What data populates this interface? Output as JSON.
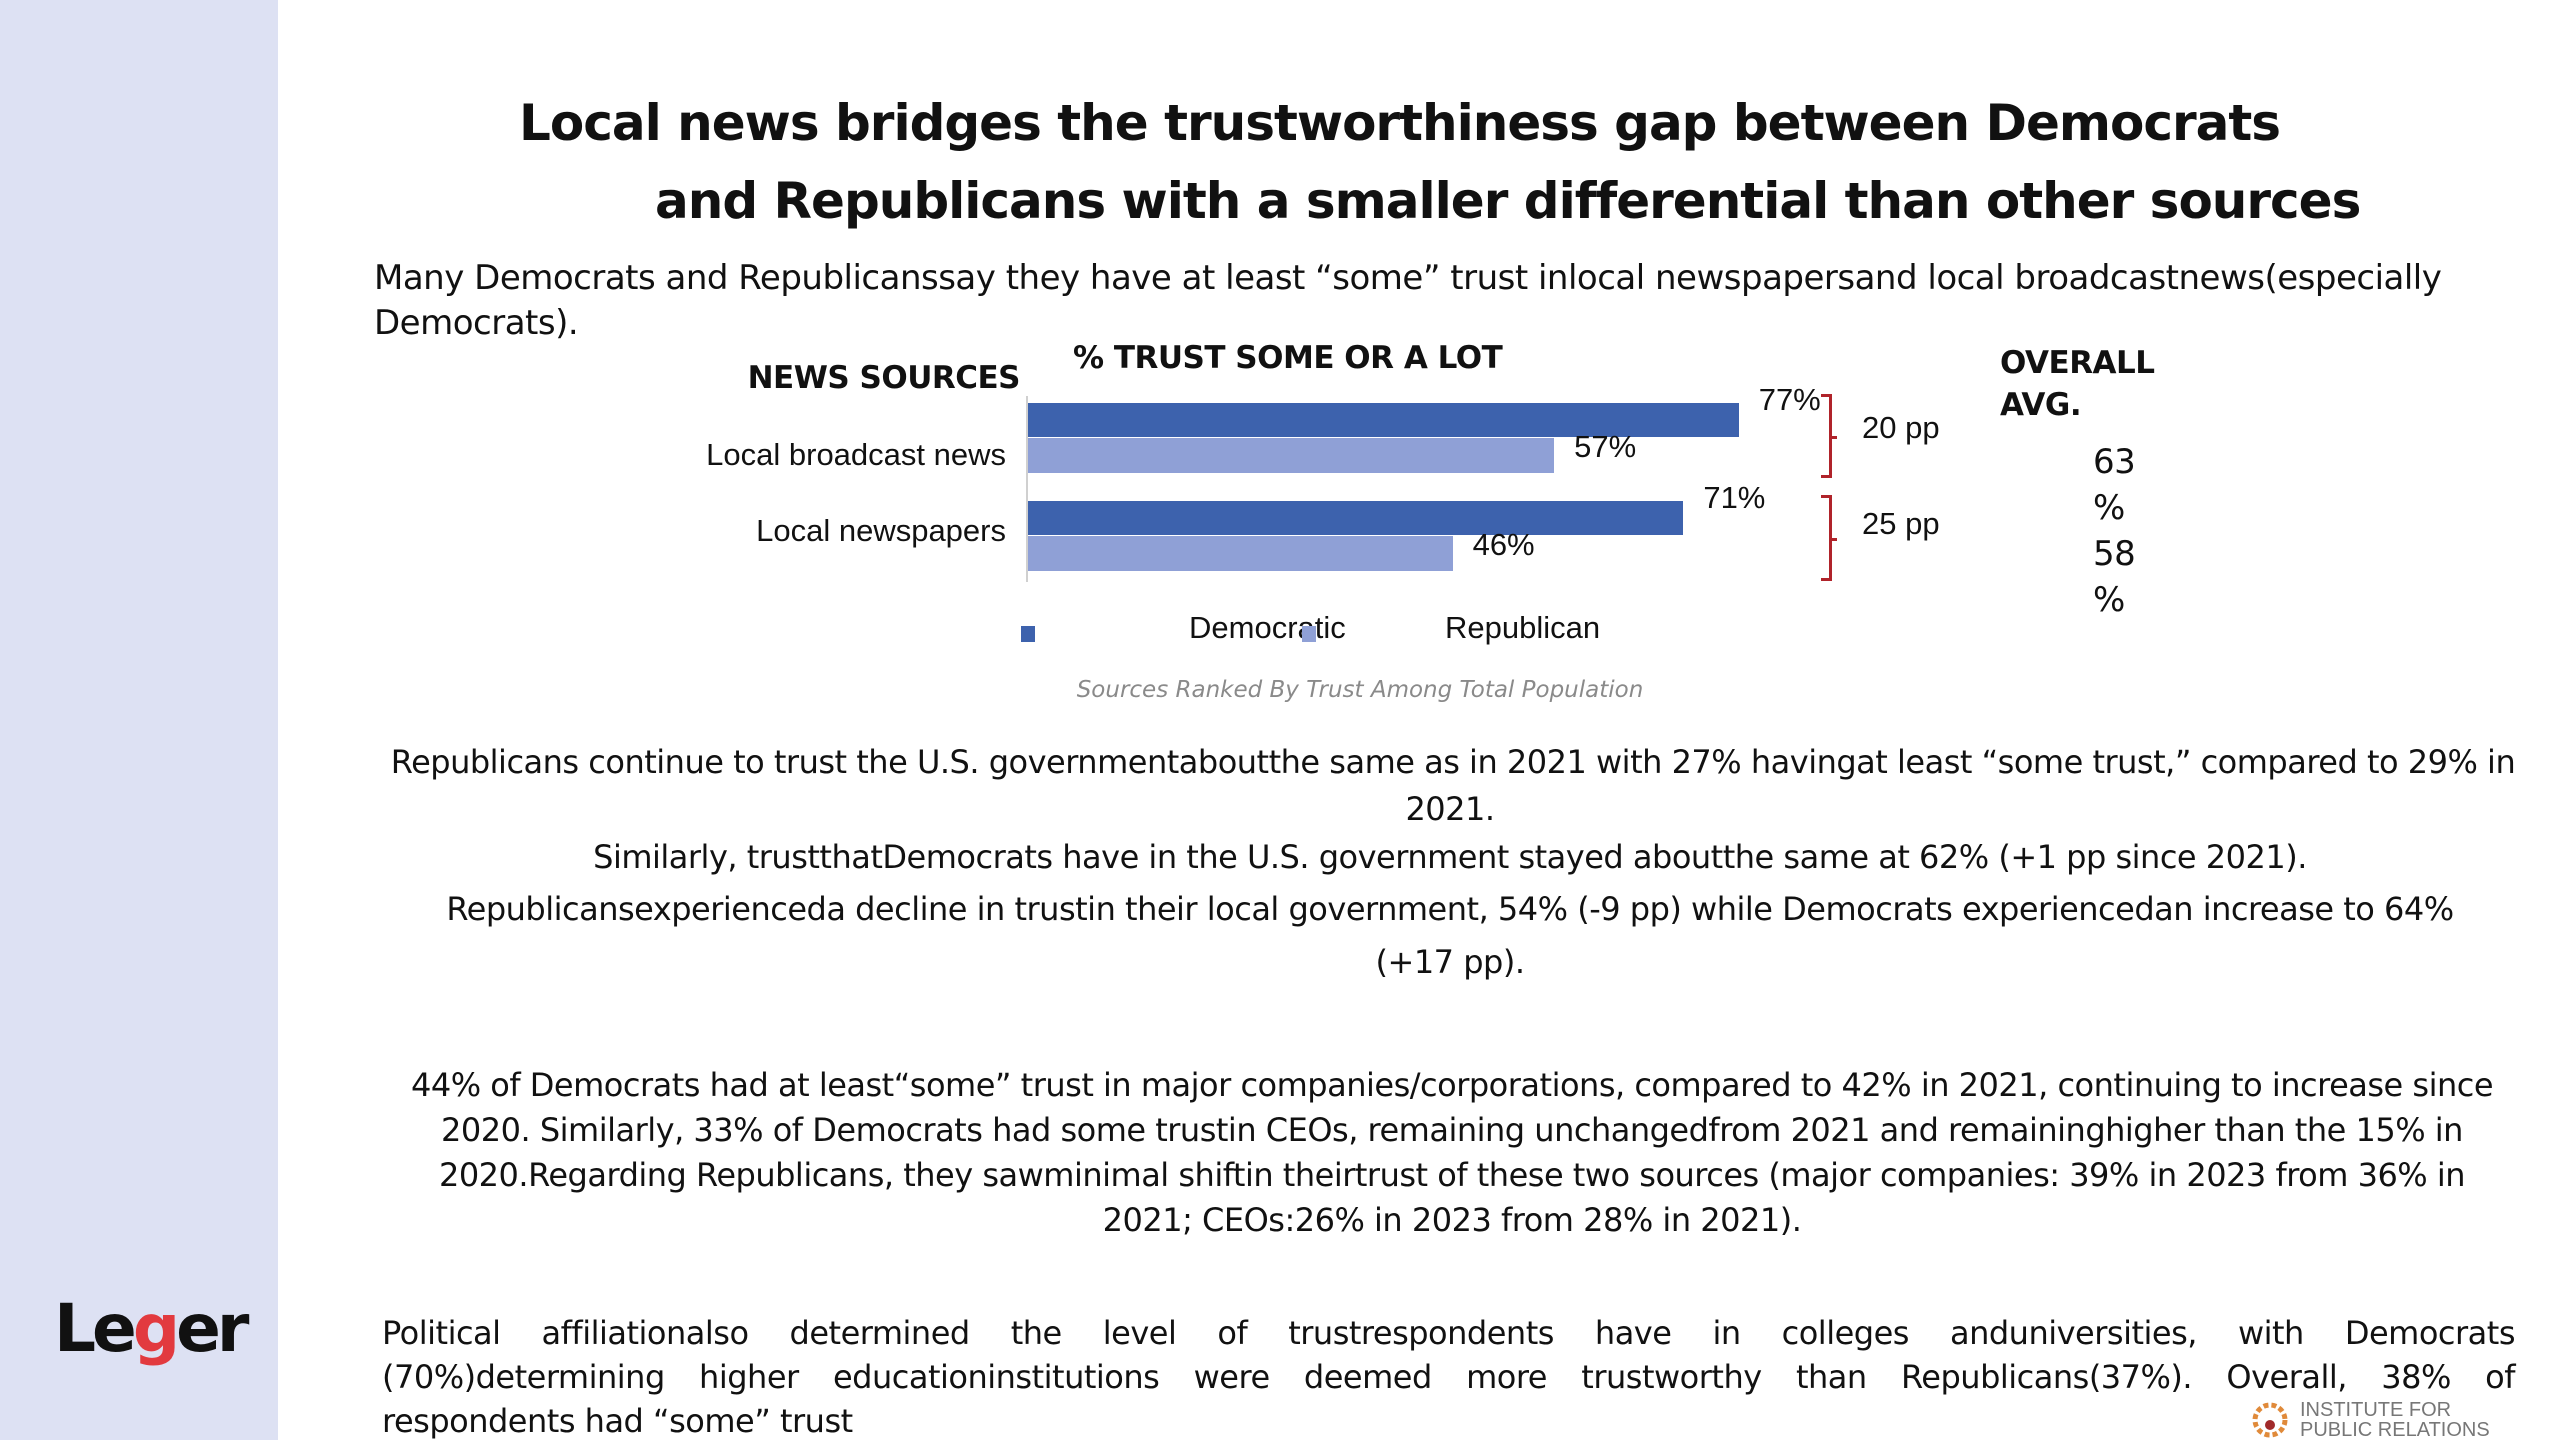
{
  "title": {
    "line1": "Local news bridges the trustworthiness gap between Democrats",
    "line2": "and Republicans with a smaller differential than other sources"
  },
  "subtitle": {
    "line1": "Many Democrats and Republicanssay they have at least “some” trust inlocal newspapersand local broadcastnews(especially",
    "line2": "Democrats)."
  },
  "chart_data": {
    "type": "bar",
    "orientation": "horizontal",
    "category_header": "NEWS SOURCES",
    "title": "% TRUST SOME OR A LOT",
    "categories": [
      "Local broadcast news",
      "Local newspapers"
    ],
    "series": [
      {
        "name": "Democratic",
        "color": "#3d62ad",
        "values": [
          77,
          71
        ],
        "labels": [
          "77%",
          "71%"
        ]
      },
      {
        "name": "Republican",
        "color": "#8fa0d6",
        "values": [
          57,
          46
        ],
        "labels": [
          "57%",
          "46%"
        ]
      }
    ],
    "gaps": [
      "20 pp",
      "25 pp"
    ],
    "overall_header": "OVERALL AVG.",
    "overall_avg": [
      "63 %",
      "58 %"
    ],
    "overall_avg_lines": [
      [
        "63",
        "%"
      ],
      [
        "58",
        "%"
      ]
    ],
    "legend_position": "bottom",
    "footnote": "Sources Ranked By Trust Among Total Population",
    "xlim": [
      0,
      100
    ],
    "grid": false
  },
  "para1": [
    "Republicans continue to trust the U.S. governmentaboutthe same as in 2021 with 27% havingat least “some trust,” compared to 29% in",
    "2021.",
    "Similarly, trustthatDemocrats have in the U.S. government stayed aboutthe same at 62% (+1 pp since 2021).",
    "Republicansexperienceda decline in trustin their local government, 54% (-9 pp) while Democrats experiencedan increase to 64%",
    "(+17 pp)."
  ],
  "para2": [
    "44% of Democrats had at least“some” trust in major companies/corporations, compared to 42% in 2021, continuing to increase since",
    "2020. Similarly, 33% of Democrats had some trustin CEOs, remaining unchangedfrom 2021 and remaininghigher than the 15% in",
    "2020.Regarding Republicans, they sawminimal shiftin theirtrust of these two sources (major companies: 39% in 2023 from 36% in",
    "2021; CEOs:26% in 2023 from 28% in 2021)."
  ],
  "para3": [
    "Political affiliationalso determined the level of trustrespondents have in colleges anduniversities, with Democrats",
    "(70%)determining higher educationinstitutions were deemed more trustworthy than Republicans(37%). Overall, 38% of",
    "respondents had “some” trust"
  ],
  "logos": {
    "leger": [
      "Le",
      "g",
      "er"
    ],
    "ipr": [
      "INSTITUTE FOR",
      "PUBLIC RELATIONS"
    ]
  }
}
